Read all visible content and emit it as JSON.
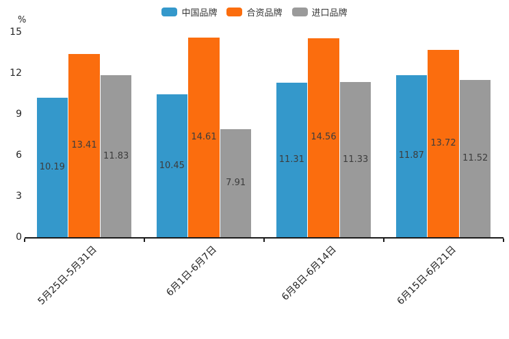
{
  "chart_data": {
    "type": "bar",
    "title": "",
    "ylabel": "%",
    "xlabel": "",
    "ylim": [
      0,
      15
    ],
    "yticks": [
      0,
      3,
      6,
      9,
      12,
      15
    ],
    "grid": false,
    "legend_position": "top-center",
    "value_labels": true,
    "categories": [
      "5月25日-5月31日",
      "6月1日-6月7日",
      "6月8日-6月14日",
      "6月15日-6月21日"
    ],
    "series": [
      {
        "name": "中国品牌",
        "color": "#3498cb",
        "values": [
          10.19,
          10.45,
          11.31,
          11.87
        ]
      },
      {
        "name": "合资品牌",
        "color": "#fb6d0e",
        "values": [
          13.41,
          14.61,
          14.56,
          13.72
        ]
      },
      {
        "name": "进口品牌",
        "color": "#9a9a9a",
        "values": [
          11.83,
          7.91,
          11.33,
          11.52
        ]
      }
    ]
  },
  "style": {
    "axis_color": "#1a1a1a",
    "tick_label_color": "#262626",
    "value_label_color": "#3c3c3c",
    "background": "#ffffff"
  }
}
